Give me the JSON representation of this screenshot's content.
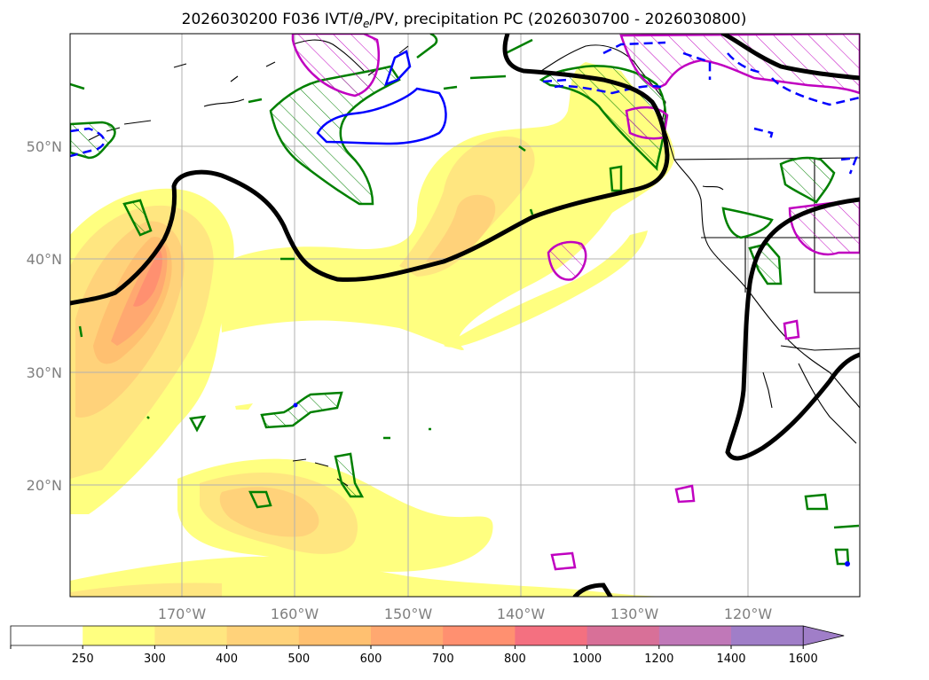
{
  "title_main": "2026030200 F036 IVT/",
  "title_theta": "θ",
  "title_theta_sub": "e",
  "title_rest": "/PV, precipitation PC (2026030700 - 2026030800)",
  "lat_labels": [
    "50°N",
    "40°N",
    "30°N",
    "20°N"
  ],
  "lon_labels": [
    "170°W",
    "160°W",
    "150°W",
    "140°W",
    "130°W",
    "120°W"
  ],
  "colorbar": {
    "levels": [
      "250",
      "300",
      "400",
      "500",
      "600",
      "700",
      "800",
      "1000",
      "1200",
      "1400",
      "1600"
    ],
    "colors": [
      "#ffffff",
      "#ffff80",
      "#ffe680",
      "#ffd27a",
      "#ffc070",
      "#ffa870",
      "#ff9070",
      "#f47080",
      "#d87098",
      "#c078b8",
      "#a07ec8"
    ],
    "extend": "max"
  },
  "line_colors": {
    "pv_contour": "#000000",
    "theta_e": "#008000",
    "positive_anom": "#c000c0",
    "negative_anom": "#0000ff"
  }
}
